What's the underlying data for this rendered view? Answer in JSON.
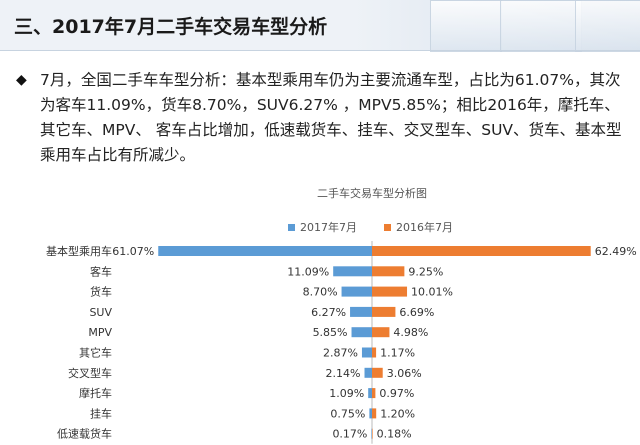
{
  "header": {
    "title": "三、2017年7月二手车交易车型分析"
  },
  "summary": {
    "bullet_icon": "diamond-bullet-icon",
    "text": "7月，全国二手车车型分析：基本型乘用车仍为主要流通车型，占比为61.07%，其次为客车11.09%，货车8.70%，SUV6.27% ，MPV5.85%；相比2016年，摩托车、其它车、MPV、 客车占比增加，低速载货车、挂车、交叉型车、SUV、货车、基本型乘用车占比有所减少。"
  },
  "chart_data": {
    "type": "bar",
    "orientation": "horizontal-diverging",
    "title": "二手车交易车型分析图",
    "categories": [
      "基本型乘用车",
      "客车",
      "货车",
      "SUV",
      "MPV",
      "其它车",
      "交叉型车",
      "摩托车",
      "挂车",
      "低速载货车"
    ],
    "series": [
      {
        "name": "2017年7月",
        "color": "#5b9bd5",
        "direction": "left",
        "values": [
          61.07,
          11.09,
          8.7,
          6.27,
          5.85,
          2.87,
          2.14,
          1.09,
          0.75,
          0.17
        ],
        "labels": [
          "61.07%",
          "11.09%",
          "8.70%",
          "6.27%",
          "5.85%",
          "2.87%",
          "2.14%",
          "1.09%",
          "0.75%",
          "0.17%"
        ]
      },
      {
        "name": "2016年7月",
        "color": "#ed7d31",
        "direction": "right",
        "values": [
          62.49,
          9.25,
          10.01,
          6.69,
          4.98,
          1.17,
          3.06,
          0.97,
          1.2,
          0.18
        ],
        "labels": [
          "62.49%",
          "9.25%",
          "10.01%",
          "6.69%",
          "4.98%",
          "1.17%",
          "3.06%",
          "0.97%",
          "1.20%",
          "0.18%"
        ]
      }
    ],
    "legend": "top-center",
    "grid": false
  }
}
